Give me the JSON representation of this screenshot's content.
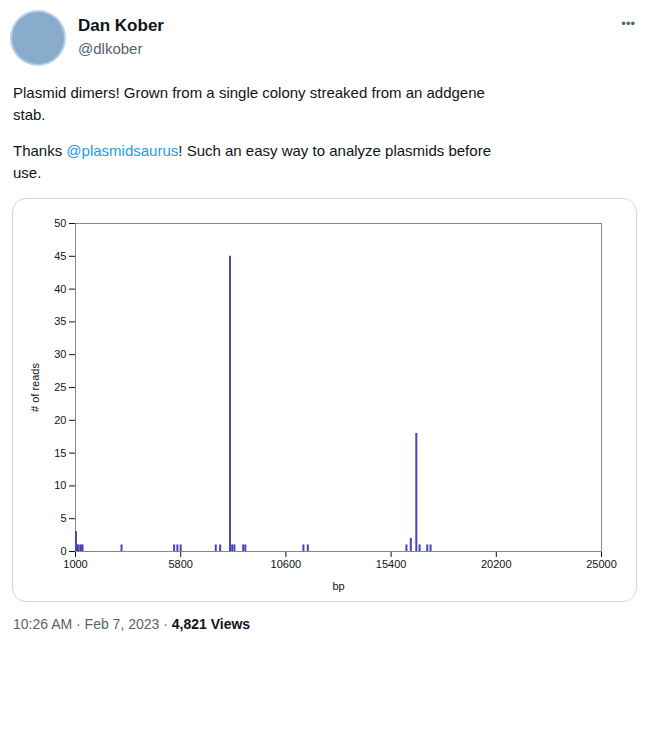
{
  "chart_data": {
    "type": "bar",
    "x": [
      1020,
      1080,
      1150,
      1250,
      1320,
      3100,
      5500,
      5650,
      5800,
      7400,
      7600,
      8050,
      8150,
      8250,
      8650,
      8750,
      11400,
      11600,
      16100,
      16300,
      16550,
      16700,
      17050,
      17200
    ],
    "values": [
      3,
      1,
      1,
      1,
      1,
      1,
      1,
      1,
      1,
      1,
      1,
      45,
      1,
      1,
      1,
      1,
      1,
      1,
      1,
      2,
      18,
      1,
      1,
      1
    ],
    "color": "#4444bb",
    "xlim": [
      1000,
      25000
    ],
    "ylim": [
      0,
      50
    ],
    "xticks": [
      1000,
      5800,
      10600,
      15400,
      20200,
      25000
    ],
    "yticks": [
      0,
      5,
      10,
      15,
      20,
      25,
      30,
      35,
      40,
      45,
      50
    ],
    "xlabel": "bp",
    "ylabel": "# of reads",
    "annotations": [
      [
        "Dan Kober"
      ],
      [
        "@dlkober"
      ],
      [
        "•••"
      ],
      [
        "Plasmid dimers! Grown from a single colony streaked from an addgene"
      ],
      [
        "stab."
      ],
      [
        "Thanks ",
        {
          "text": "@plasmidsaurus",
          "color": "#1d9bf0"
        },
        "! Such an easy way to analyze plasmids before"
      ],
      [
        "use."
      ],
      [
        "10:26 AM · Feb 7, 2023 · ",
        "4,821 Views"
      ]
    ]
  }
}
